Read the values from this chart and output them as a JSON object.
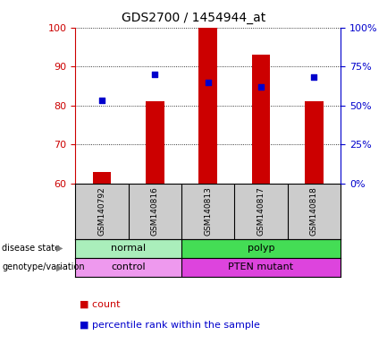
{
  "title": "GDS2700 / 1454944_at",
  "samples": [
    "GSM140792",
    "GSM140816",
    "GSM140813",
    "GSM140817",
    "GSM140818"
  ],
  "bar_tops": [
    63,
    81,
    100,
    93,
    81
  ],
  "dot_percentiles": [
    53,
    70,
    65,
    62,
    68
  ],
  "ylim_left": [
    60,
    100
  ],
  "ylim_right": [
    0,
    100
  ],
  "yticks_left": [
    60,
    70,
    80,
    90,
    100
  ],
  "yticks_right": [
    0,
    25,
    50,
    75,
    100
  ],
  "bar_color": "#cc0000",
  "dot_color": "#0000cc",
  "bar_width": 0.35,
  "disease_state": [
    {
      "label": "normal",
      "span": [
        0,
        2
      ],
      "color": "#aaeebb"
    },
    {
      "label": "polyp",
      "span": [
        2,
        5
      ],
      "color": "#44dd55"
    }
  ],
  "genotype": [
    {
      "label": "control",
      "span": [
        0,
        2
      ],
      "color": "#ee99ee"
    },
    {
      "label": "PTEN mutant",
      "span": [
        2,
        5
      ],
      "color": "#dd44dd"
    }
  ],
  "tick_label_color_left": "#cc0000",
  "tick_label_color_right": "#0000cc",
  "grid_linestyle": "dotted",
  "background_color": "#ffffff",
  "xticklabel_bg": "#cccccc",
  "legend_count_color": "#cc0000",
  "legend_pct_color": "#0000cc",
  "row_label_disease": "disease state",
  "row_label_geno": "genotype/variation"
}
